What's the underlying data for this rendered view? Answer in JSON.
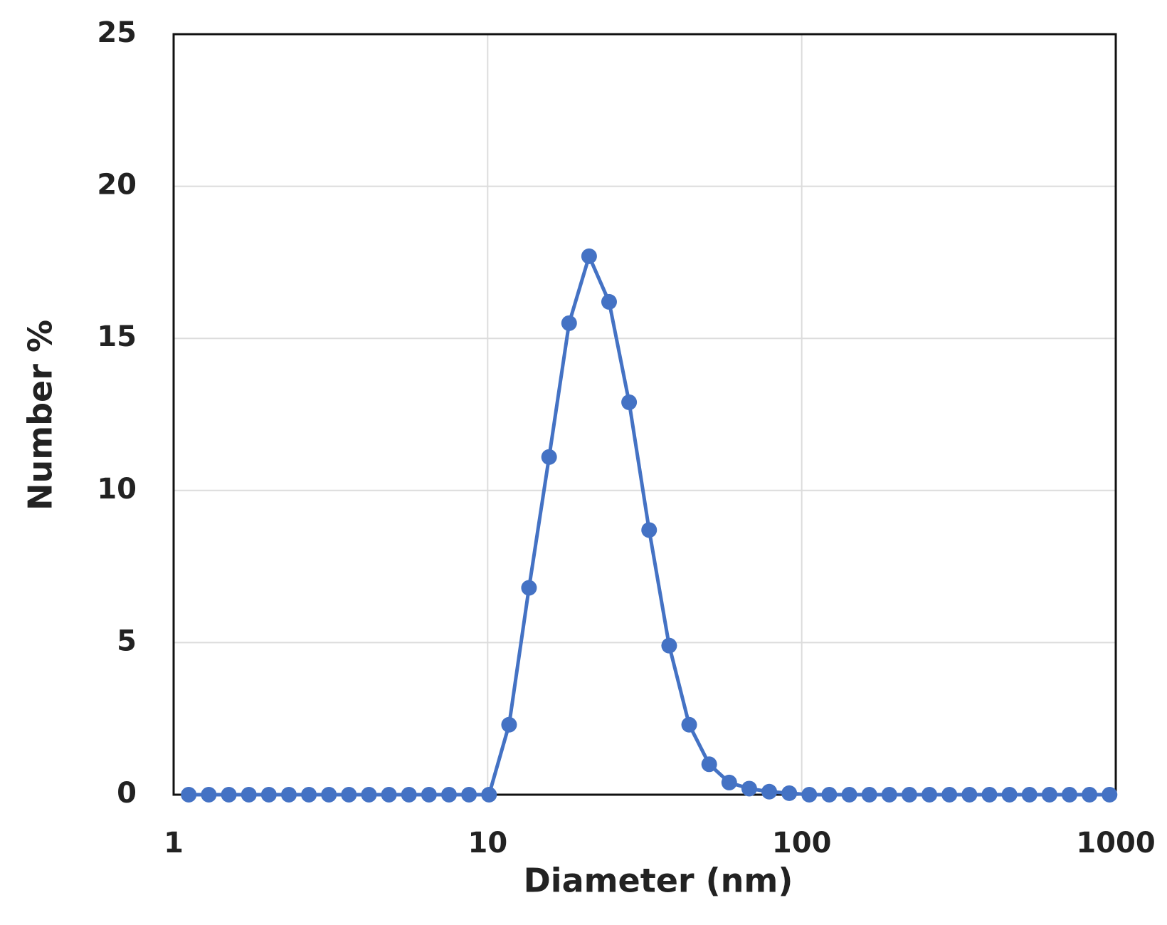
{
  "chart_data": {
    "type": "line",
    "xlabel": "Diameter (nm)",
    "ylabel": "Number %",
    "x": [
      1.117,
      1.294,
      1.499,
      1.736,
      2.01,
      2.328,
      2.696,
      3.122,
      3.615,
      4.187,
      4.849,
      5.615,
      6.503,
      7.531,
      8.721,
      10.1,
      11.7,
      13.54,
      15.69,
      18.17,
      21.04,
      24.36,
      28.21,
      32.67,
      37.84,
      43.82,
      50.75,
      58.77,
      68.06,
      78.82,
      91.28,
      105.7,
      122.4,
      141.8,
      164.2,
      190.1,
      220.2,
      255.0,
      295.3,
      342.0,
      396.1,
      458.7,
      531.2,
      615.1,
      712.4,
      825.0,
      955.4
    ],
    "series": [
      {
        "name": "Number %",
        "color": "#4472c4",
        "values": [
          0,
          0,
          0,
          0,
          0,
          0,
          0,
          0,
          0,
          0,
          0,
          0,
          0,
          0,
          0,
          0,
          2.3,
          6.8,
          11.1,
          15.5,
          17.7,
          16.2,
          12.9,
          8.7,
          4.9,
          2.3,
          1.0,
          0.4,
          0.2,
          0.1,
          0.05,
          0,
          0,
          0,
          0,
          0,
          0,
          0,
          0,
          0,
          0,
          0,
          0,
          0,
          0,
          0,
          0
        ]
      }
    ],
    "xlim": [
      1,
      1000
    ],
    "xticks": [
      1,
      10,
      100,
      1000
    ],
    "xscale": "log",
    "ylim": [
      0,
      25
    ],
    "yticks": [
      0,
      5,
      10,
      15,
      20,
      25
    ],
    "grid": true
  }
}
